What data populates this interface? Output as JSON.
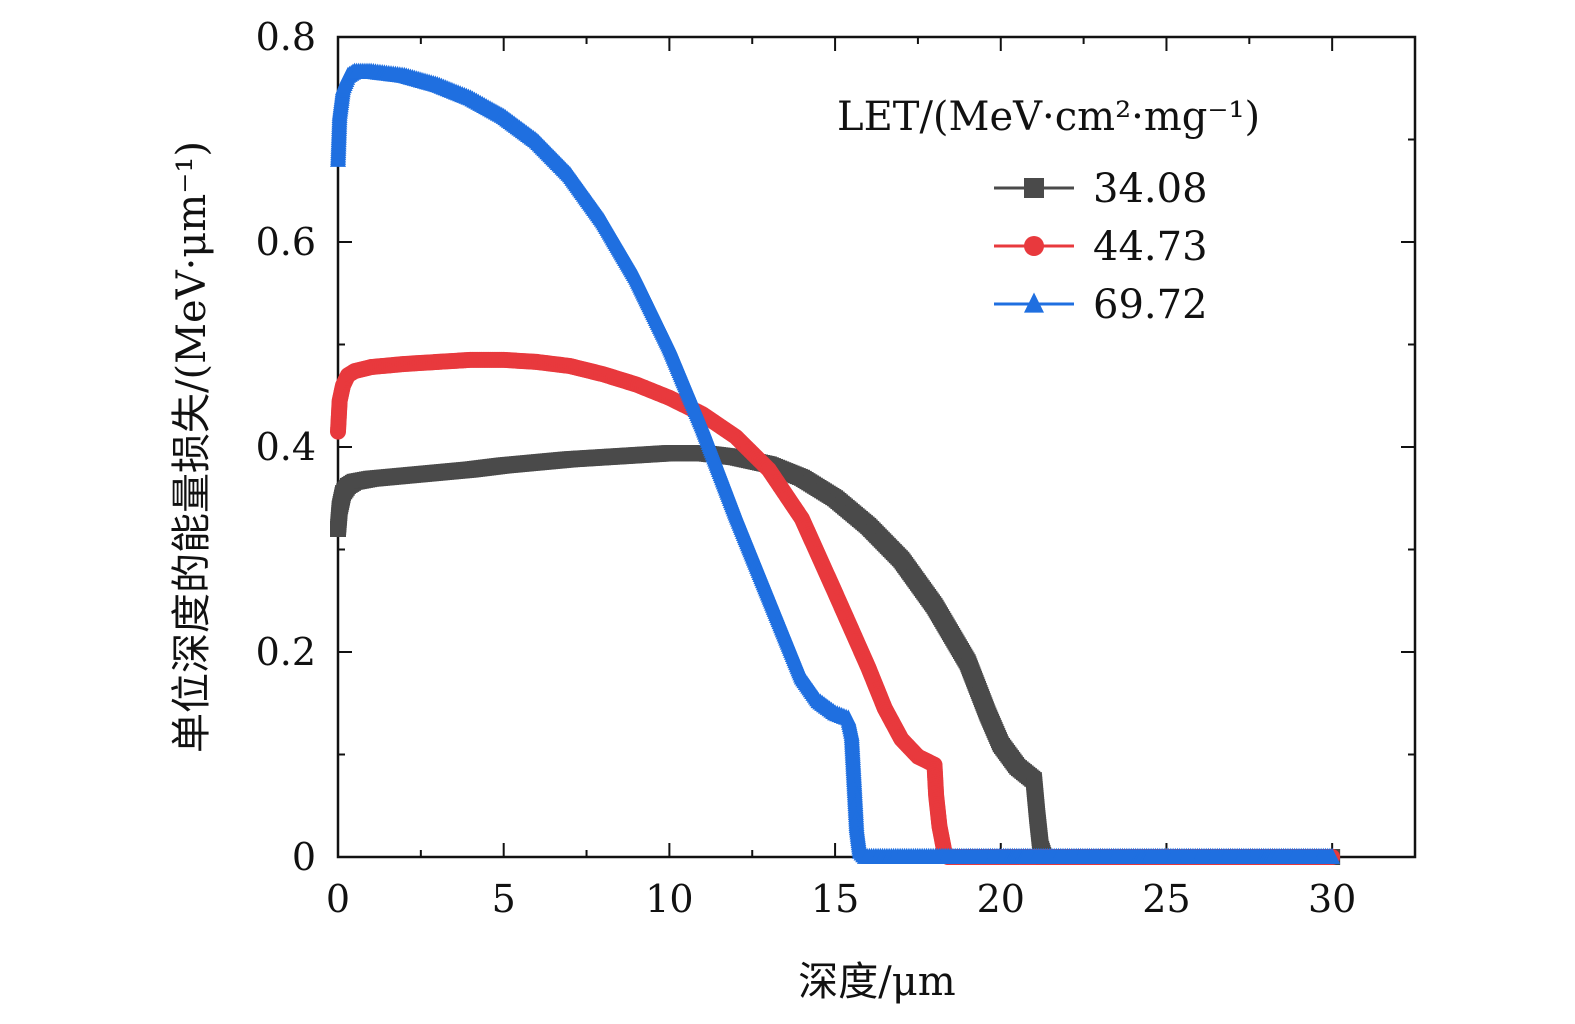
{
  "chart_data": {
    "type": "line",
    "xlabel": "深度/μm",
    "ylabel": "单位深度的能量损失/(MeV·μm⁻¹)",
    "xlim": [
      0,
      32.5
    ],
    "ylim": [
      0,
      0.8
    ],
    "xticks": [
      0,
      5,
      10,
      15,
      20,
      25,
      30
    ],
    "xtick_labels": [
      "0",
      "5",
      "10",
      "15",
      "20",
      "25",
      "30"
    ],
    "yticks": [
      0,
      0.2,
      0.4,
      0.6,
      0.8
    ],
    "ytick_labels": [
      "0",
      "0.2",
      "0.4",
      "0.6",
      "0.8"
    ],
    "grid": false,
    "legend": {
      "title": "LET/(MeV·cm²·mg⁻¹)",
      "placement": "top-right"
    },
    "series": [
      {
        "name": "34.08",
        "color": "#4a4a4a",
        "marker": "square",
        "points": [
          [
            0,
            0.32
          ],
          [
            0.05,
            0.34
          ],
          [
            0.15,
            0.355
          ],
          [
            0.3,
            0.362
          ],
          [
            0.5,
            0.366
          ],
          [
            1,
            0.369
          ],
          [
            2,
            0.372
          ],
          [
            3,
            0.375
          ],
          [
            4,
            0.378
          ],
          [
            5,
            0.382
          ],
          [
            6,
            0.385
          ],
          [
            7,
            0.388
          ],
          [
            8,
            0.39
          ],
          [
            9,
            0.392
          ],
          [
            10,
            0.394
          ],
          [
            11,
            0.394
          ],
          [
            12,
            0.39
          ],
          [
            13,
            0.383
          ],
          [
            14,
            0.37
          ],
          [
            15,
            0.35
          ],
          [
            16,
            0.323
          ],
          [
            17,
            0.29
          ],
          [
            18,
            0.245
          ],
          [
            19,
            0.19
          ],
          [
            19.6,
            0.14
          ],
          [
            20,
            0.11
          ],
          [
            20.5,
            0.088
          ],
          [
            21,
            0.075
          ],
          [
            21.1,
            0.04
          ],
          [
            21.2,
            0.01
          ],
          [
            21.3,
            0
          ],
          [
            25,
            0
          ],
          [
            30,
            0
          ]
        ]
      },
      {
        "name": "44.73",
        "color": "#e8393d",
        "marker": "circle",
        "points": [
          [
            0,
            0.415
          ],
          [
            0.05,
            0.445
          ],
          [
            0.15,
            0.46
          ],
          [
            0.3,
            0.47
          ],
          [
            0.5,
            0.474
          ],
          [
            1,
            0.478
          ],
          [
            2,
            0.481
          ],
          [
            3,
            0.483
          ],
          [
            4,
            0.485
          ],
          [
            5,
            0.485
          ],
          [
            6,
            0.483
          ],
          [
            7,
            0.479
          ],
          [
            8,
            0.471
          ],
          [
            9,
            0.461
          ],
          [
            10,
            0.448
          ],
          [
            11,
            0.432
          ],
          [
            12,
            0.41
          ],
          [
            13,
            0.378
          ],
          [
            14,
            0.33
          ],
          [
            15,
            0.258
          ],
          [
            16,
            0.185
          ],
          [
            16.5,
            0.145
          ],
          [
            17,
            0.115
          ],
          [
            17.5,
            0.098
          ],
          [
            18,
            0.09
          ],
          [
            18.05,
            0.06
          ],
          [
            18.15,
            0.03
          ],
          [
            18.3,
            0.005
          ],
          [
            18.4,
            0
          ],
          [
            25,
            0
          ],
          [
            30,
            0
          ]
        ]
      },
      {
        "name": "69.72",
        "color": "#1f6fe0",
        "marker": "triangle",
        "points": [
          [
            0,
            0.68
          ],
          [
            0.05,
            0.725
          ],
          [
            0.15,
            0.75
          ],
          [
            0.3,
            0.762
          ],
          [
            0.5,
            0.766
          ],
          [
            1,
            0.766
          ],
          [
            2,
            0.762
          ],
          [
            3,
            0.753
          ],
          [
            4,
            0.74
          ],
          [
            5,
            0.722
          ],
          [
            6,
            0.698
          ],
          [
            7,
            0.665
          ],
          [
            8,
            0.62
          ],
          [
            9,
            0.565
          ],
          [
            10,
            0.498
          ],
          [
            11,
            0.42
          ],
          [
            12,
            0.335
          ],
          [
            13,
            0.255
          ],
          [
            14,
            0.175
          ],
          [
            14.5,
            0.152
          ],
          [
            15,
            0.14
          ],
          [
            15.4,
            0.135
          ],
          [
            15.5,
            0.12
          ],
          [
            15.55,
            0.09
          ],
          [
            15.6,
            0.06
          ],
          [
            15.65,
            0.03
          ],
          [
            15.75,
            0.005
          ],
          [
            15.9,
            0
          ],
          [
            25,
            0
          ],
          [
            30,
            0
          ]
        ]
      }
    ]
  }
}
